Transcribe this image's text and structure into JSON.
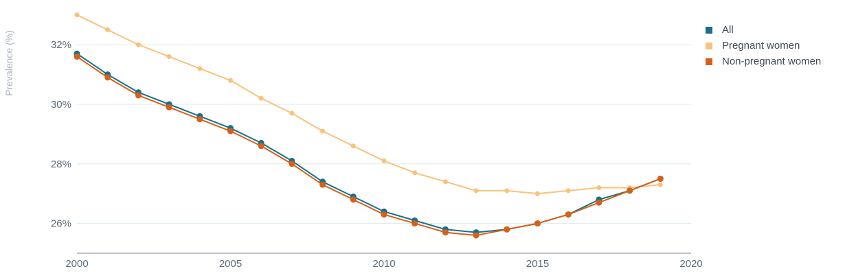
{
  "chart_data": {
    "type": "line",
    "ylabel": "Prevalence (%)",
    "xlabel": "",
    "xlim": [
      2000,
      2020
    ],
    "ylim": [
      25.0,
      33.5
    ],
    "x_ticks": [
      2000,
      2005,
      2010,
      2015,
      2020
    ],
    "x_tick_labels": [
      "2000",
      "2005",
      "2010",
      "2015",
      "2020"
    ],
    "y_ticks": [
      26,
      28,
      30,
      32
    ],
    "y_tick_labels": [
      "26%",
      "28%",
      "30%",
      "32%"
    ],
    "grid": "horizontal",
    "legend_position": "top-right",
    "x": [
      2000,
      2001,
      2002,
      2003,
      2004,
      2005,
      2006,
      2007,
      2008,
      2009,
      2010,
      2011,
      2012,
      2013,
      2014,
      2015,
      2016,
      2017,
      2018,
      2019
    ],
    "series": [
      {
        "name": "All",
        "color": "#17718a",
        "values": [
          31.7,
          31.0,
          30.4,
          30.0,
          29.6,
          29.2,
          28.7,
          28.1,
          27.4,
          26.9,
          26.4,
          26.1,
          25.8,
          25.7,
          25.8,
          26.0,
          26.3,
          26.8,
          27.1,
          27.5
        ]
      },
      {
        "name": "Pregnant women",
        "color": "#f9c27a",
        "values": [
          33.0,
          32.5,
          32.0,
          31.6,
          31.2,
          30.8,
          30.2,
          29.7,
          29.1,
          28.6,
          28.1,
          27.7,
          27.4,
          27.1,
          27.1,
          27.0,
          27.1,
          27.2,
          27.2,
          27.3
        ]
      },
      {
        "name": "Non-pregnant women",
        "color": "#d6601a",
        "values": [
          31.6,
          30.9,
          30.3,
          29.9,
          29.5,
          29.1,
          28.6,
          28.0,
          27.3,
          26.8,
          26.3,
          26.0,
          25.7,
          25.6,
          25.8,
          26.0,
          26.3,
          26.7,
          27.1,
          27.5
        ]
      }
    ]
  },
  "style": {
    "axis_text_color": "#5d6b78",
    "ylabel_color": "#aab3bd",
    "grid_color": "#dcebec",
    "axis_color": "#7a8794"
  }
}
